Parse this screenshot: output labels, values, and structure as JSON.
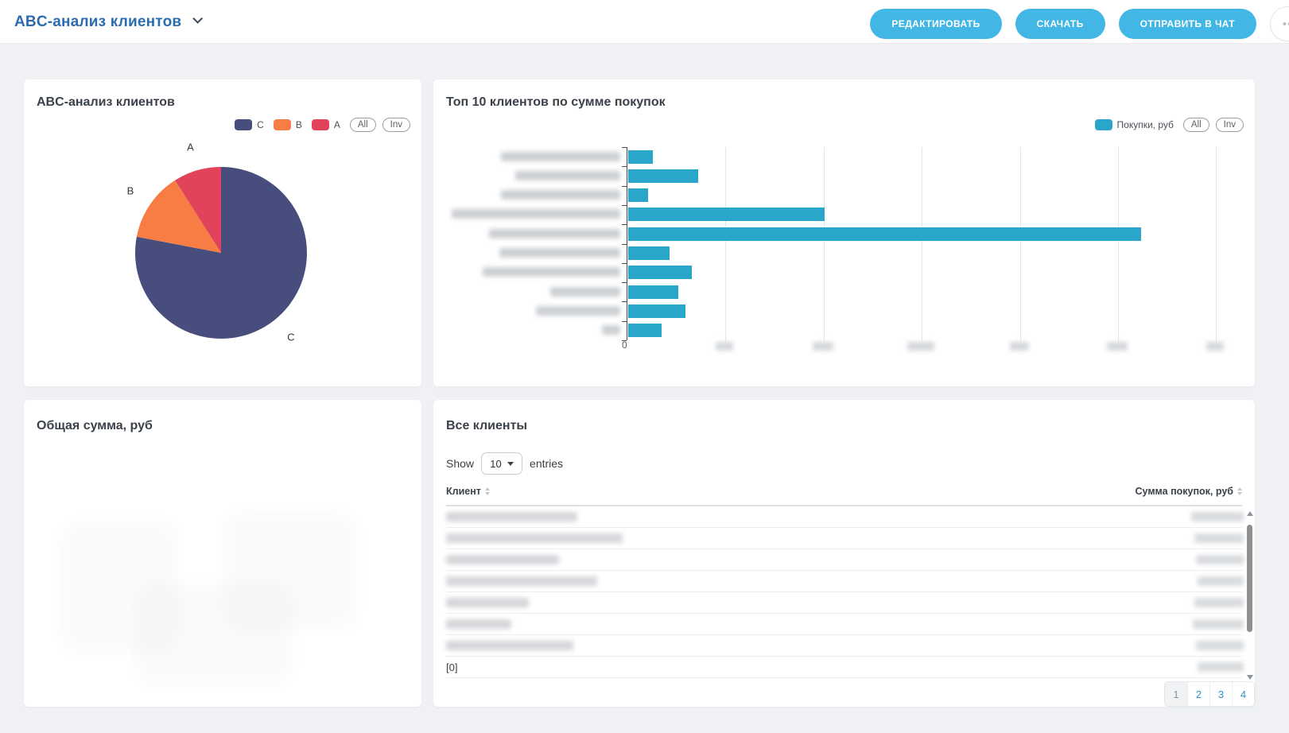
{
  "colors": {
    "accent_cyan": "#42b7e6",
    "title_blue": "#2b6cae",
    "pie_c": "#474d7c",
    "pie_b": "#f87d45",
    "pie_a": "#e0435a",
    "bar_teal": "#29a6c9",
    "pagination_link": "#2f93c6"
  },
  "header": {
    "title": "ABC-анализ клиентов",
    "actions": [
      {
        "label": "РЕДАКТИРОВАТЬ"
      },
      {
        "label": "СКАЧАТЬ"
      },
      {
        "label": "ОТПРАВИТЬ В ЧАТ"
      }
    ],
    "more": "••"
  },
  "pie_card": {
    "title": "ABC-анализ клиентов",
    "legend": [
      {
        "label": "C",
        "color": "#474d7c"
      },
      {
        "label": "B",
        "color": "#f87d45"
      },
      {
        "label": "A",
        "color": "#e0435a"
      }
    ],
    "filters": [
      "All",
      "Inv"
    ]
  },
  "bar_card": {
    "title": "Топ 10 клиентов по сумме покупок",
    "legend": [
      {
        "label": "Покупки, руб",
        "color": "#29a6c9"
      }
    ],
    "filters": [
      "All",
      "Inv"
    ]
  },
  "total_card": {
    "title": "Общая сумма, руб"
  },
  "table_card": {
    "title": "Все клиенты",
    "show_label": "Show",
    "page_size": "10",
    "entries_label": "entries",
    "columns": [
      "Клиент",
      "Сумма покупок, руб"
    ],
    "rows": [
      {
        "name_redacted": true,
        "name_w": 165,
        "sum_redacted": true,
        "sum_w": 66
      },
      {
        "name_redacted": true,
        "name_w": 222,
        "sum_redacted": true,
        "sum_w": 62
      },
      {
        "name_redacted": true,
        "name_w": 142,
        "sum_redacted": true,
        "sum_w": 60
      },
      {
        "name_redacted": true,
        "name_w": 190,
        "sum_redacted": true,
        "sum_w": 58
      },
      {
        "name_redacted": true,
        "name_w": 104,
        "sum_redacted": true,
        "sum_w": 62
      },
      {
        "name_redacted": true,
        "name_w": 82,
        "sum_redacted": true,
        "sum_w": 64
      },
      {
        "name_redacted": true,
        "name_w": 160,
        "sum_redacted": true,
        "sum_w": 60
      },
      {
        "name_text": "[0]",
        "name_w": 0,
        "sum_redacted": true,
        "sum_w": 58
      }
    ],
    "pagination": {
      "pages": [
        "1",
        "2",
        "3",
        "4"
      ],
      "active": "1"
    }
  },
  "chart_data": [
    {
      "type": "pie",
      "title": "ABC-анализ клиентов",
      "direction": "clockwise_from_top",
      "slices": [
        {
          "label": "C",
          "value": 78,
          "color": "#474d7c"
        },
        {
          "label": "B",
          "value": 13,
          "color": "#f87d45"
        },
        {
          "label": "A",
          "value": 9,
          "color": "#e0435a"
        }
      ]
    },
    {
      "type": "bar",
      "orientation": "horizontal",
      "title": "Топ 10 клиентов по сумме покупок",
      "series": [
        {
          "name": "Покупки, руб",
          "color": "#29a6c9",
          "values_rel_gridline_units": [
            0.25,
            0.71,
            0.2,
            2.0,
            5.23,
            0.42,
            0.65,
            0.51,
            0.58,
            0.34
          ]
        }
      ],
      "categories_redacted": true,
      "category_label_widths": [
        150,
        132,
        150,
        212,
        165,
        152,
        173,
        88,
        106,
        23
      ],
      "x_axis": {
        "min": 0,
        "max_rel": 6.16,
        "gridline_every_rel": 1,
        "tick_labels_visible": [
          "0"
        ],
        "tick_labels_redacted": 6,
        "tick_smudge_widths": [
          22,
          26,
          34,
          24,
          26,
          22
        ]
      }
    }
  ]
}
